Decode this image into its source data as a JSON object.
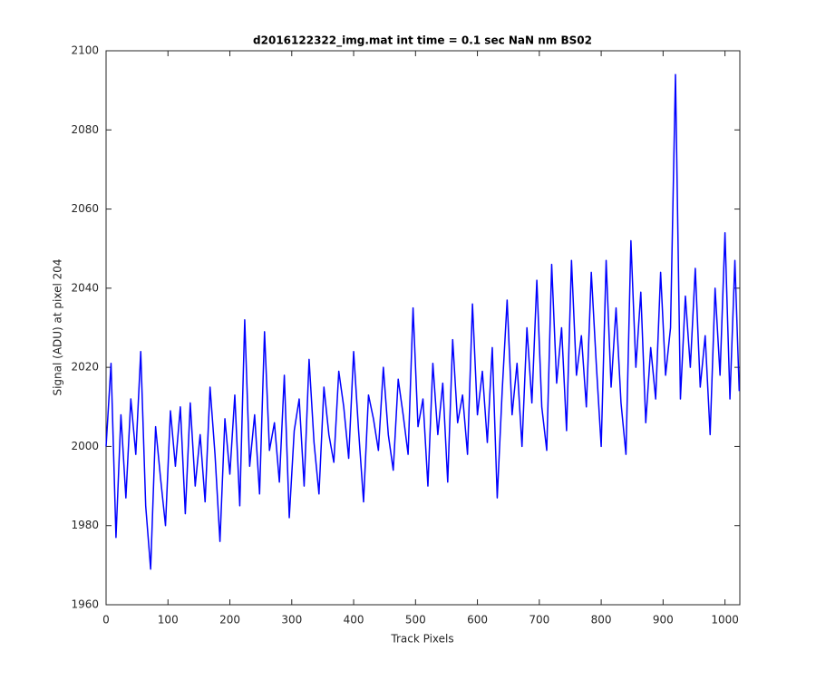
{
  "chart_data": {
    "type": "line",
    "title": "d2016122322_img.mat int time = 0.1 sec  NaN nm BS02",
    "xlabel": "Track Pixels",
    "ylabel": "Signal (ADU) at pixel 204",
    "x": [
      0,
      8,
      16,
      24,
      32,
      40,
      48,
      56,
      64,
      72,
      80,
      88,
      96,
      104,
      112,
      120,
      128,
      136,
      144,
      152,
      160,
      168,
      176,
      184,
      192,
      200,
      208,
      216,
      224,
      232,
      240,
      248,
      256,
      264,
      272,
      280,
      288,
      296,
      304,
      312,
      320,
      328,
      336,
      344,
      352,
      360,
      368,
      376,
      384,
      392,
      400,
      408,
      416,
      424,
      432,
      440,
      448,
      456,
      464,
      472,
      480,
      488,
      496,
      504,
      512,
      520,
      528,
      536,
      544,
      552,
      560,
      568,
      576,
      584,
      592,
      600,
      608,
      616,
      624,
      632,
      640,
      648,
      656,
      664,
      672,
      680,
      688,
      696,
      704,
      712,
      720,
      728,
      736,
      744,
      752,
      760,
      768,
      776,
      784,
      792,
      800,
      808,
      816,
      824,
      832,
      840,
      848,
      856,
      864,
      872,
      880,
      888,
      896,
      904,
      912,
      920,
      928,
      936,
      944,
      952,
      960,
      968,
      976,
      984,
      992,
      1000,
      1008,
      1016,
      1023
    ],
    "series": [
      {
        "name": "signal",
        "color": "#0000ff",
        "values": [
          2000,
          2021,
          1977,
          2008,
          1987,
          2012,
          1998,
          2024,
          1985,
          1969,
          2005,
          1992,
          1980,
          2009,
          1995,
          2010,
          1983,
          2011,
          1990,
          2003,
          1986,
          2015,
          1998,
          1976,
          2007,
          1993,
          2013,
          1985,
          2032,
          1995,
          2008,
          1988,
          2029,
          1999,
          2006,
          1991,
          2018,
          1982,
          2004,
          2012,
          1990,
          2022,
          2001,
          1988,
          2015,
          2003,
          1996,
          2019,
          2010,
          1997,
          2024,
          2004,
          1986,
          2013,
          2007,
          1999,
          2020,
          2003,
          1994,
          2017,
          2008,
          1998,
          2035,
          2005,
          2012,
          1990,
          2021,
          2003,
          2016,
          1991,
          2027,
          2006,
          2013,
          1998,
          2036,
          2008,
          2019,
          2001,
          2025,
          1987,
          2014,
          2037,
          2008,
          2021,
          2000,
          2030,
          2011,
          2042,
          2010,
          1999,
          2046,
          2016,
          2030,
          2004,
          2047,
          2018,
          2028,
          2010,
          2044,
          2021,
          2000,
          2047,
          2015,
          2035,
          2011,
          1998,
          2052,
          2020,
          2039,
          2006,
          2025,
          2012,
          2044,
          2018,
          2030,
          2094,
          2012,
          2038,
          2020,
          2045,
          2015,
          2028,
          2003,
          2040,
          2018,
          2054,
          2012,
          2047,
          2014
        ]
      }
    ],
    "xlim": [
      0,
      1024
    ],
    "ylim": [
      1960,
      2100
    ],
    "xticks": [
      0,
      100,
      200,
      300,
      400,
      500,
      600,
      700,
      800,
      900,
      1000
    ],
    "yticks": [
      1960,
      1980,
      2000,
      2020,
      2040,
      2060,
      2080,
      2100
    ]
  }
}
